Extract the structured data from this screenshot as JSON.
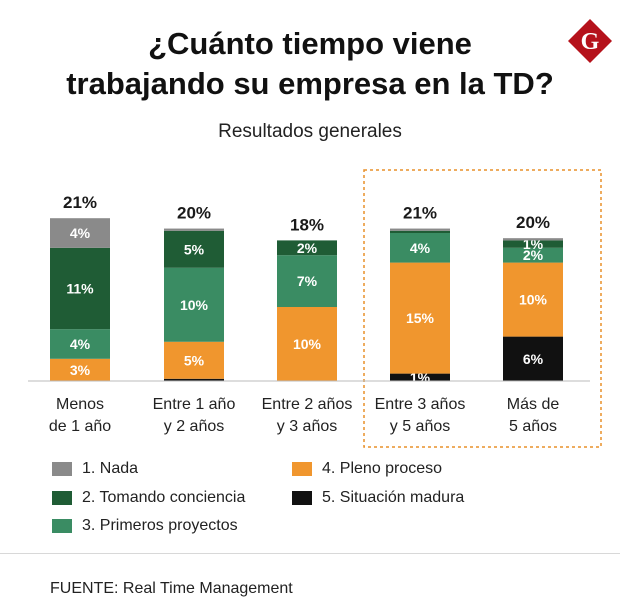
{
  "title_line1": "¿Cuánto tiempo viene",
  "title_line2": "trabajando su empresa en la TD?",
  "subtitle": "Resultados generales",
  "logo_letter": "G",
  "source": "FUENTE: Real Time Management",
  "colors": {
    "nada": "#8a8a8a",
    "tomando": "#1f5c35",
    "primeros": "#3a8c63",
    "pleno": "#f0962e",
    "madura": "#111111",
    "highlight": "#e8902a",
    "logo": "#b5121b"
  },
  "legend": [
    {
      "key": "nada",
      "label": "1. Nada"
    },
    {
      "key": "tomando",
      "label": "2. Tomando conciencia"
    },
    {
      "key": "primeros",
      "label": "3. Primeros proyectos"
    },
    {
      "key": "pleno",
      "label": "4. Pleno proceso"
    },
    {
      "key": "madura",
      "label": "5. Situación madura"
    }
  ],
  "chart_data": {
    "type": "bar",
    "stacked": true,
    "title": "¿Cuánto tiempo viene trabajando su empresa en la TD?",
    "subtitle": "Resultados generales",
    "categories": [
      [
        "Menos",
        "de 1 año"
      ],
      [
        "Entre 1 año",
        "y 2 años"
      ],
      [
        "Entre 2 años",
        "y 3 años"
      ],
      [
        "Entre 3 años",
        "y 5 años"
      ],
      [
        "Más de",
        "5 años"
      ]
    ],
    "totals": [
      "21%",
      "20%",
      "18%",
      "21%",
      "20%"
    ],
    "series": [
      {
        "name": "5. Situación madura",
        "key": "madura",
        "values": [
          0,
          0.3,
          0,
          1,
          6
        ],
        "labels": [
          "",
          "",
          "",
          "1%",
          "6%"
        ]
      },
      {
        "name": "4. Pleno proceso",
        "key": "pleno",
        "values": [
          3,
          5,
          10,
          15,
          10
        ],
        "labels": [
          "3%",
          "5%",
          "10%",
          "15%",
          "10%"
        ]
      },
      {
        "name": "3. Primeros proyectos",
        "key": "primeros",
        "values": [
          4,
          10,
          7,
          4,
          2
        ],
        "labels": [
          "4%",
          "10%",
          "7%",
          "4%",
          "2%"
        ]
      },
      {
        "name": "2. Tomando conciencia",
        "key": "tomando",
        "values": [
          11,
          5,
          2,
          0.3,
          1
        ],
        "labels": [
          "11%",
          "5%",
          "2%",
          "",
          "1%"
        ]
      },
      {
        "name": "1. Nada",
        "key": "nada",
        "values": [
          4,
          0.3,
          0,
          0.3,
          0.3
        ],
        "labels": [
          "4%",
          "",
          "",
          "",
          ""
        ]
      }
    ],
    "highlight_categories": [
      3,
      4
    ]
  }
}
